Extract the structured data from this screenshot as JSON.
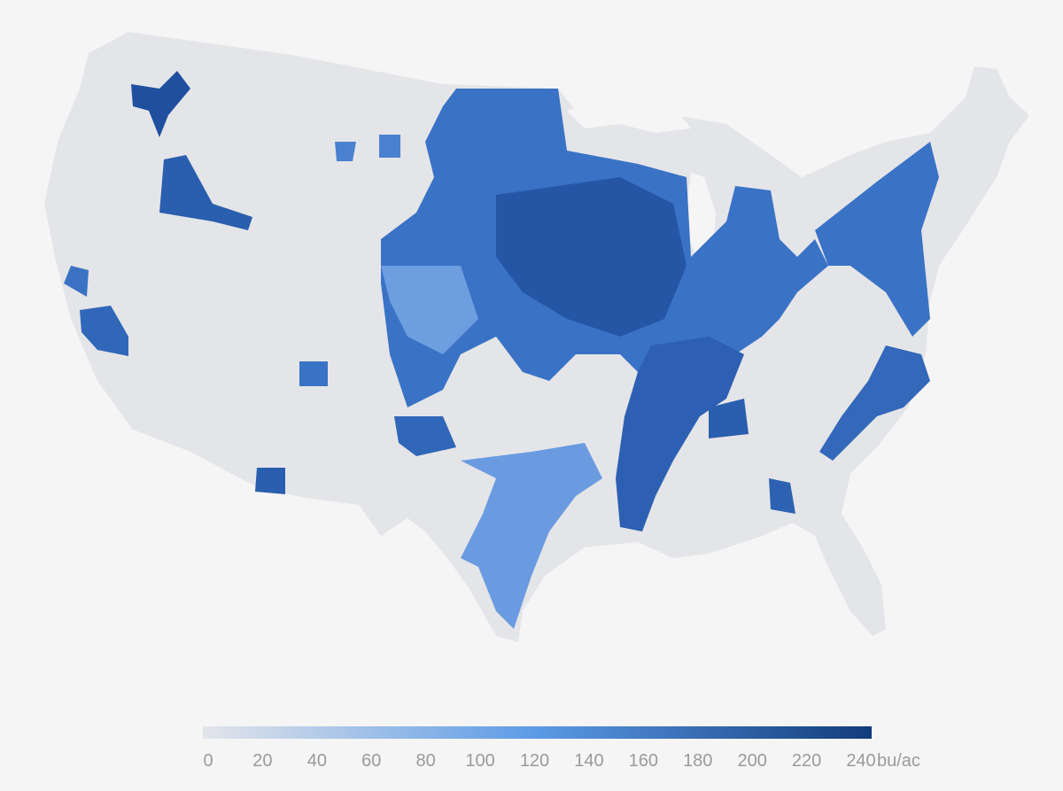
{
  "legend": {
    "range": [
      0,
      240
    ],
    "ticks": [
      0,
      20,
      40,
      60,
      80,
      100,
      120,
      140,
      160,
      180,
      200,
      220,
      240
    ],
    "unit": "bu/ac",
    "colors": [
      "#e3e5ea",
      "#5b9ae6",
      "#123c7c"
    ]
  }
}
